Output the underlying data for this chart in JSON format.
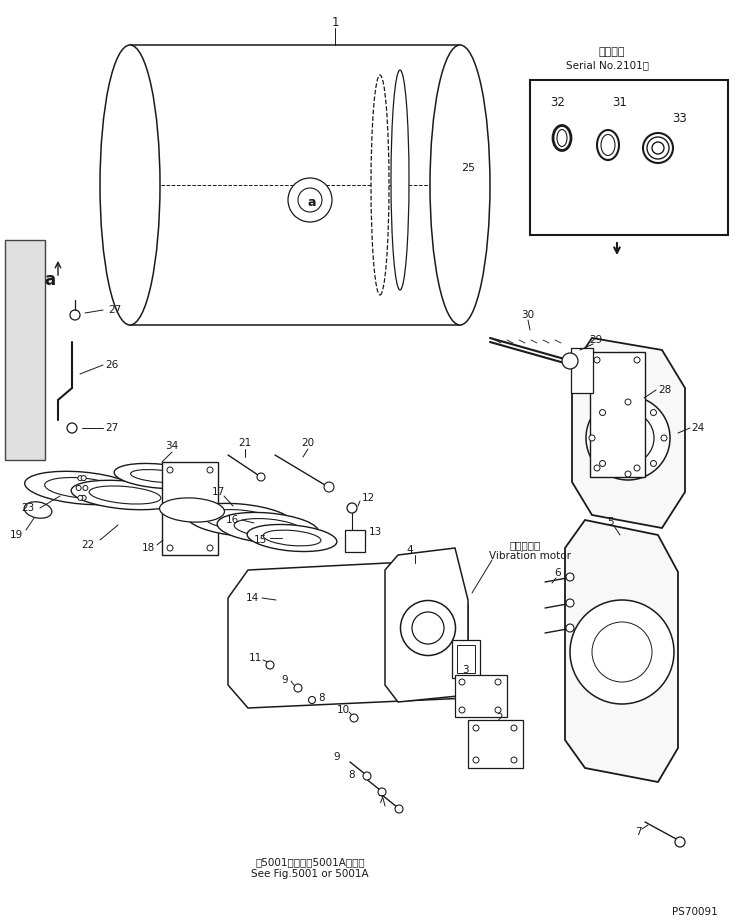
{
  "bg_color": "#ffffff",
  "line_color": "#1a1a1a",
  "fig_width": 7.41,
  "fig_height": 9.24,
  "bottom_text1": "第5001図または5001A図参照",
  "bottom_text2": "See Fig.5001 or 5001A",
  "ps_text": "PS70091",
  "vibration_motor_j": "起振モータ",
  "vibration_motor_e": "Vibration motor",
  "inset_title_j": "適用号機",
  "inset_title_e": "Serial No.2101～"
}
